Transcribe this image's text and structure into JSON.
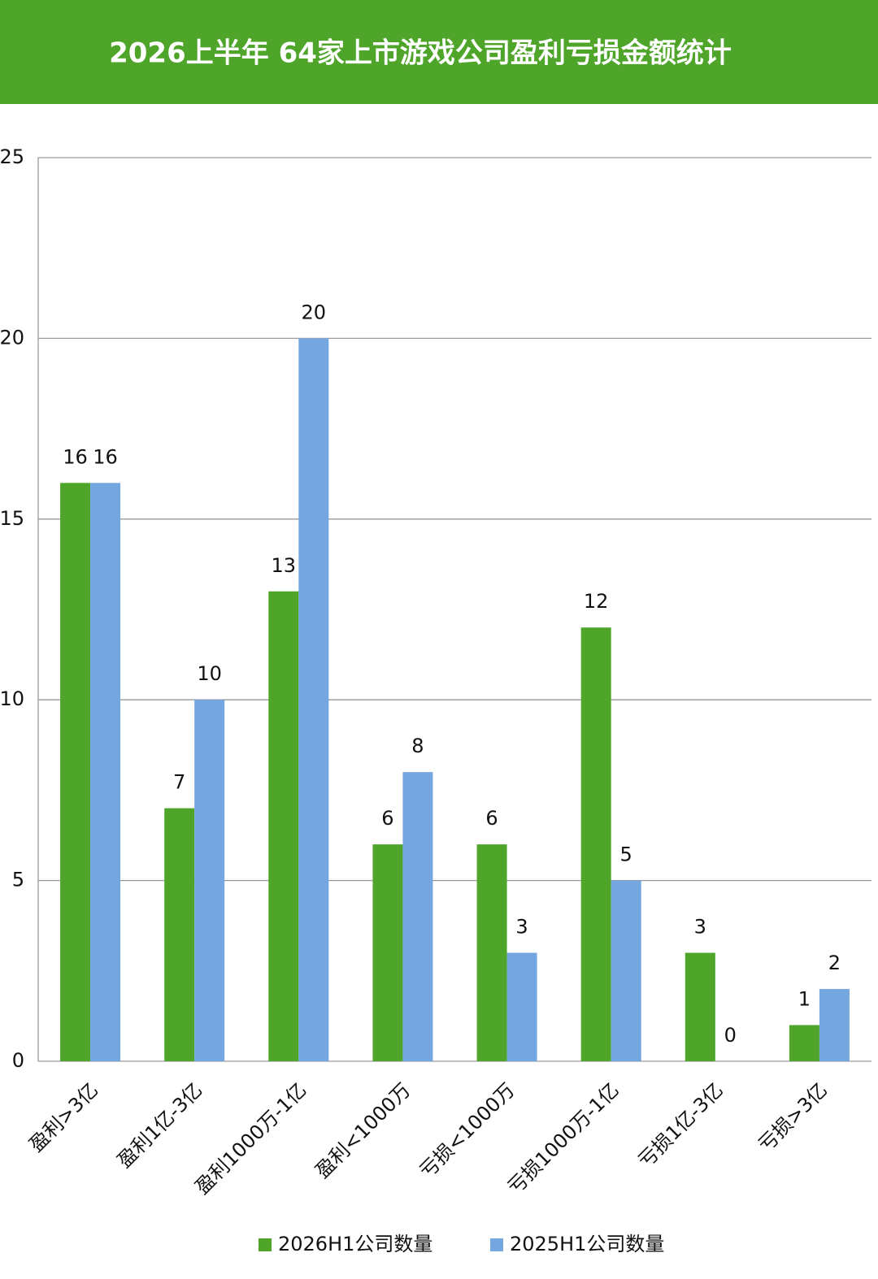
{
  "chart_data": {
    "type": "bar",
    "title": "2026上半年 64家上市游戏公司盈利亏损金额统计",
    "categories": [
      "盈利>3亿",
      "盈利1亿-3亿",
      "盈利1000万-1亿",
      "盈利<1000万",
      "亏损<1000万",
      "亏损1000万-1亿",
      "亏损1亿-3亿",
      "亏损>3亿"
    ],
    "series": [
      {
        "name": "2026H1公司数量",
        "color": "#4ea52a",
        "values": [
          16,
          7,
          13,
          6,
          6,
          12,
          3,
          1
        ]
      },
      {
        "name": "2025H1公司数量",
        "color": "#74a6e0",
        "values": [
          16,
          10,
          20,
          8,
          3,
          5,
          0,
          2
        ]
      }
    ],
    "ylim": [
      0,
      25
    ],
    "yticks": [
      0,
      5,
      10,
      15,
      20,
      25
    ],
    "grid": true,
    "legend": "bottom"
  }
}
